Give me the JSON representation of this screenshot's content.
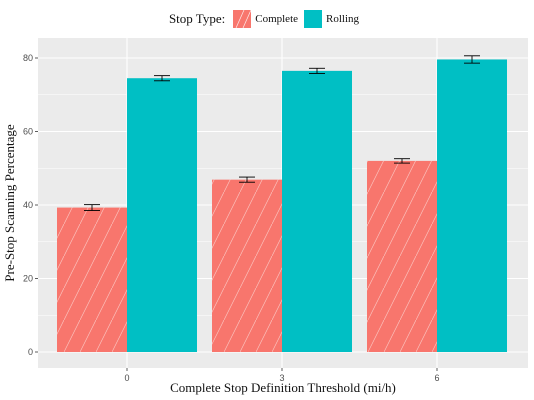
{
  "chart_data": {
    "type": "bar",
    "title": "",
    "xlabel": "Complete Stop Definition Threshold (mi/h)",
    "ylabel": "Pre-Stop Scanning Percentage",
    "categories": [
      "0",
      "3",
      "6"
    ],
    "ylim": [
      0,
      85
    ],
    "yticks": [
      0,
      20,
      40,
      60,
      80
    ],
    "grid": true,
    "legend": {
      "title": "Stop Type:",
      "position": "top"
    },
    "series": [
      {
        "name": "Complete",
        "color": "#F8766D",
        "pattern": "diagonal-stripes",
        "values": [
          39.3,
          46.9,
          52.0
        ],
        "error": [
          0.8,
          0.7,
          0.6
        ]
      },
      {
        "name": "Rolling",
        "color": "#00BFC4",
        "pattern": "none",
        "values": [
          74.5,
          76.5,
          79.6
        ],
        "error": [
          0.7,
          0.7,
          1.0
        ]
      }
    ]
  }
}
